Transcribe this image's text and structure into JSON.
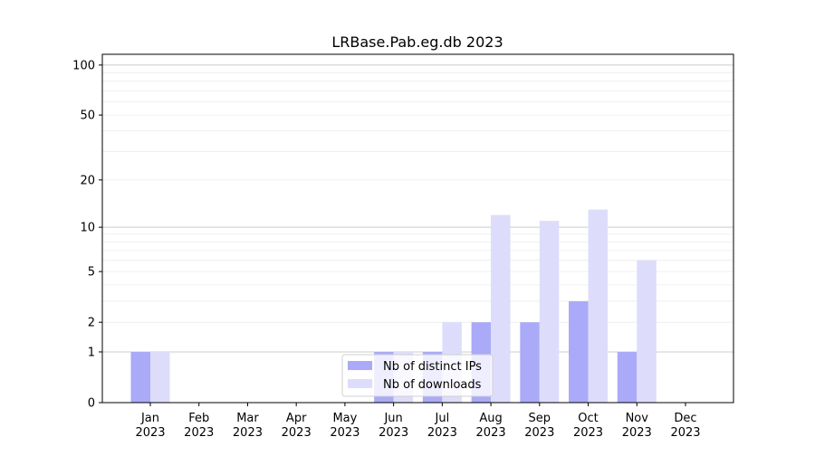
{
  "chart_data": {
    "type": "bar",
    "title": "LRBase.Pab.eg.db 2023",
    "xlabel": "",
    "ylabel": "",
    "y_scale": "log(1+y)",
    "ylim": [
      0,
      116
    ],
    "y_ticks": [
      0,
      1,
      2,
      5,
      10,
      20,
      50,
      100
    ],
    "grid": true,
    "legend_position": "lower-center",
    "categories": [
      "Jan\n2023",
      "Feb\n2023",
      "Mar\n2023",
      "Apr\n2023",
      "May\n2023",
      "Jun\n2023",
      "Jul\n2023",
      "Aug\n2023",
      "Sep\n2023",
      "Oct\n2023",
      "Nov\n2023",
      "Dec\n2023"
    ],
    "series": [
      {
        "name": "Nb of distinct IPs",
        "color": "#aaaaf8",
        "values": [
          1,
          0,
          0,
          0,
          0,
          1,
          1,
          2,
          2,
          3,
          1,
          0
        ]
      },
      {
        "name": "Nb of downloads",
        "color": "#ddddfb",
        "values": [
          1,
          0,
          0,
          0,
          0,
          1,
          2,
          12,
          11,
          13,
          6,
          0
        ]
      }
    ]
  }
}
